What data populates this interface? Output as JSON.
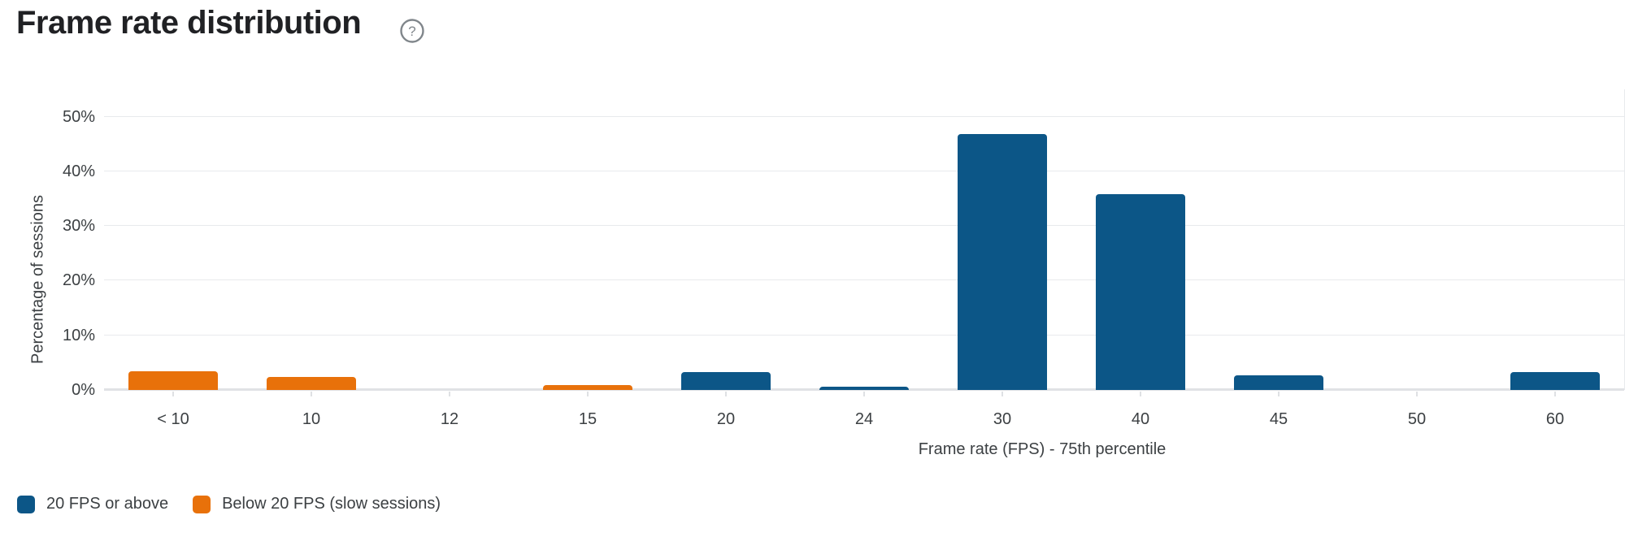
{
  "header": {
    "title": "Frame rate distribution",
    "help_icon": "question-mark-circle"
  },
  "chart_data": {
    "type": "bar",
    "title": "Frame rate distribution",
    "xlabel": "Frame rate (FPS) - 75th percentile",
    "ylabel": "Percentage of sessions",
    "ylim": [
      0,
      55
    ],
    "grid": "horizontal",
    "legend_position": "bottom-left",
    "yticks": [
      {
        "value": 0,
        "label": "0%"
      },
      {
        "value": 10,
        "label": "10%"
      },
      {
        "value": 20,
        "label": "20%"
      },
      {
        "value": 30,
        "label": "30%"
      },
      {
        "value": 40,
        "label": "40%"
      },
      {
        "value": 50,
        "label": "50%"
      }
    ],
    "categories": [
      "< 10",
      "10",
      "12",
      "15",
      "20",
      "24",
      "30",
      "40",
      "45",
      "50",
      "60"
    ],
    "bars": [
      {
        "category": "< 10",
        "value": 3.4,
        "series": "Below 20 FPS (slow sessions)"
      },
      {
        "category": "10",
        "value": 2.4,
        "series": "Below 20 FPS (slow sessions)"
      },
      {
        "category": "12",
        "value": 0,
        "series": "Below 20 FPS (slow sessions)"
      },
      {
        "category": "15",
        "value": 0.9,
        "series": "Below 20 FPS (slow sessions)"
      },
      {
        "category": "20",
        "value": 3.2,
        "series": "20 FPS or above"
      },
      {
        "category": "24",
        "value": 0.6,
        "series": "20 FPS or above"
      },
      {
        "category": "30",
        "value": 46.9,
        "series": "20 FPS or above"
      },
      {
        "category": "40",
        "value": 35.9,
        "series": "20 FPS or above"
      },
      {
        "category": "45",
        "value": 2.7,
        "series": "20 FPS or above"
      },
      {
        "category": "50",
        "value": 0,
        "series": "20 FPS or above"
      },
      {
        "category": "60",
        "value": 3.2,
        "series": "20 FPS or above"
      }
    ],
    "series_colors": {
      "20 FPS or above": "#0c5687",
      "Below 20 FPS (slow sessions)": "#e8710a"
    }
  },
  "legend": {
    "items": [
      {
        "label": "20 FPS or above",
        "color": "#0c5687"
      },
      {
        "label": "Below 20 FPS (slow sessions)",
        "color": "#e8710a"
      }
    ]
  }
}
